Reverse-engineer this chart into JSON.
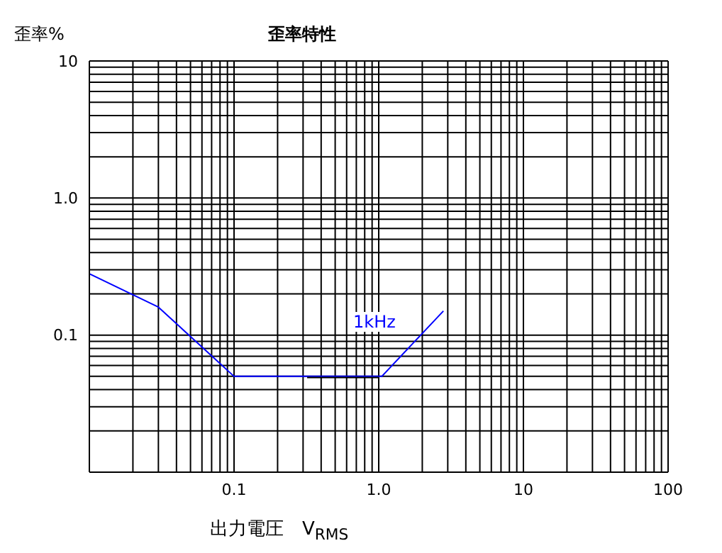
{
  "chart_data": {
    "type": "line",
    "title": "歪率特性",
    "xlabel": "出力電圧　V$_{RMS}$",
    "ylabel": "歪率%",
    "log": "xy",
    "grid": true,
    "legend": false,
    "marker": "none",
    "line_style": "solid",
    "annotations": [
      "1kHz"
    ],
    "series": [
      {
        "color": "#0000ff",
        "x": [
          0.01,
          0.03,
          0.1,
          1.05,
          2.8
        ],
        "values": [
          0.28,
          0.16,
          0.05,
          0.05,
          0.15
        ]
      },
      {
        "color": "#000000",
        "x": [
          0.32,
          1.0
        ],
        "values": [
          0.049,
          0.049
        ]
      }
    ],
    "xlim": [
      0.01,
      100
    ],
    "ylim": [
      0.01,
      10
    ],
    "xticks": [
      {
        "value": 0.01,
        "label": null
      },
      {
        "value": 0.02,
        "label": null
      },
      {
        "value": 0.03,
        "label": null
      },
      {
        "value": 0.04,
        "label": null
      },
      {
        "value": 0.05,
        "label": null
      },
      {
        "value": 0.06,
        "label": null
      },
      {
        "value": 0.07,
        "label": null
      },
      {
        "value": 0.08,
        "label": null
      },
      {
        "value": 0.09,
        "label": null
      },
      {
        "value": 0.1,
        "label": "0.1"
      },
      {
        "value": 0.2,
        "label": null
      },
      {
        "value": 0.3,
        "label": null
      },
      {
        "value": 0.4,
        "label": null
      },
      {
        "value": 0.5,
        "label": null
      },
      {
        "value": 0.6,
        "label": null
      },
      {
        "value": 0.7,
        "label": null
      },
      {
        "value": 0.8,
        "label": null
      },
      {
        "value": 0.9,
        "label": null
      },
      {
        "value": 1,
        "label": "1.0"
      },
      {
        "value": 2,
        "label": null
      },
      {
        "value": 3,
        "label": null
      },
      {
        "value": 4,
        "label": null
      },
      {
        "value": 5,
        "label": null
      },
      {
        "value": 6,
        "label": null
      },
      {
        "value": 7,
        "label": null
      },
      {
        "value": 8,
        "label": null
      },
      {
        "value": 9,
        "label": null
      },
      10,
      {
        "value": 20,
        "label": null
      },
      {
        "value": 30,
        "label": null
      },
      {
        "value": 40,
        "label": null
      },
      {
        "value": 50,
        "label": null
      },
      {
        "value": 60,
        "label": null
      },
      {
        "value": 70,
        "label": null
      },
      {
        "value": 80,
        "label": null
      },
      {
        "value": 90,
        "label": null
      },
      100
    ],
    "yticks": [
      {
        "value": 0.01,
        "label": null
      },
      {
        "value": 0.02,
        "label": null
      },
      {
        "value": 0.03,
        "label": null
      },
      {
        "value": 0.04,
        "label": null
      },
      {
        "value": 0.05,
        "label": null
      },
      {
        "value": 0.06,
        "label": null
      },
      {
        "value": 0.07,
        "label": null
      },
      {
        "value": 0.08,
        "label": null
      },
      {
        "value": 0.09,
        "label": null
      },
      {
        "value": 0.1,
        "label": "0.1"
      },
      {
        "value": 0.2,
        "label": null
      },
      {
        "value": 0.3,
        "label": null
      },
      {
        "value": 0.4,
        "label": null
      },
      {
        "value": 0.5,
        "label": null
      },
      {
        "value": 0.6,
        "label": null
      },
      {
        "value": 0.7,
        "label": null
      },
      {
        "value": 0.8,
        "label": null
      },
      {
        "value": 0.9,
        "label": null
      },
      {
        "value": 1,
        "label": "1.0"
      },
      {
        "value": 2,
        "label": null
      },
      {
        "value": 3,
        "label": null
      },
      {
        "value": 4,
        "label": null
      },
      {
        "value": 5,
        "label": null
      },
      {
        "value": 6,
        "label": null
      },
      {
        "value": 7,
        "label": null
      },
      {
        "value": 8,
        "label": null
      },
      {
        "value": 9,
        "label": null
      },
      10
    ]
  }
}
